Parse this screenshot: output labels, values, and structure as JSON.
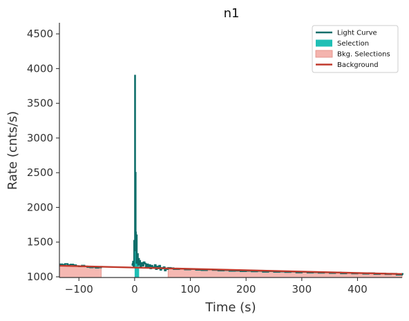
{
  "chart_data": {
    "type": "line",
    "title": "n1",
    "xlabel": "Time (s)",
    "ylabel": "Rate (cnts/s)",
    "xlim": [
      -135,
      480
    ],
    "ylim": [
      990,
      4660
    ],
    "x_ticks": [
      -100,
      0,
      100,
      200,
      300,
      400
    ],
    "x_tick_labels": [
      "−100",
      "0",
      "100",
      "200",
      "300",
      "400"
    ],
    "y_ticks": [
      1000,
      1500,
      2000,
      2500,
      3000,
      3500,
      4000,
      4500
    ],
    "y_tick_labels": [
      "1000",
      "1500",
      "2000",
      "2500",
      "3000",
      "3500",
      "4000",
      "4500"
    ],
    "grid": false,
    "legend_position": "top-right",
    "colors": {
      "light_curve": "#0e6e6a",
      "selection": "#1fbfb5",
      "bkg_selection": "#f4b4ae",
      "bkg_selection_edge": "#e08a82",
      "background": "#c0392b",
      "axis": "#333333"
    },
    "legend": [
      {
        "label": "Light Curve",
        "kind": "line",
        "color_key": "light_curve"
      },
      {
        "label": "Selection",
        "kind": "patch",
        "color_key": "selection"
      },
      {
        "label": "Bkg. Selections",
        "kind": "patch",
        "color_key": "bkg_selection"
      },
      {
        "label": "Background",
        "kind": "line",
        "color_key": "background"
      }
    ],
    "selection_interval": [
      0,
      8
    ],
    "bkg_intervals": [
      [
        -135,
        -60
      ],
      [
        60,
        480
      ]
    ],
    "background_line": {
      "x": [
        -135,
        480
      ],
      "y": [
        1160,
        1040
      ]
    },
    "light_curve": {
      "name": "Light Curve",
      "x": [
        -135,
        -130,
        -125,
        -120,
        -115,
        -110,
        -105,
        -100,
        -95,
        -90,
        -85,
        -80,
        -75,
        -70,
        -65,
        -60,
        -5,
        -4,
        -3,
        -2,
        -1,
        0,
        0.5,
        1,
        1.5,
        2,
        2.5,
        3,
        3.5,
        4,
        5,
        6,
        7,
        8,
        9,
        10,
        12,
        14,
        16,
        18,
        20,
        22,
        24,
        26,
        28,
        30,
        32,
        34,
        36,
        38,
        40,
        42,
        44,
        46,
        48,
        50,
        52,
        54,
        56,
        58,
        60,
        65,
        70,
        80,
        90,
        100,
        110,
        120,
        130,
        140,
        150,
        160,
        170,
        180,
        190,
        200,
        210,
        220,
        230,
        240,
        250,
        260,
        270,
        280,
        290,
        300,
        310,
        320,
        330,
        340,
        350,
        360,
        370,
        380,
        390,
        400,
        410,
        420,
        430,
        440,
        450,
        460,
        470,
        480
      ],
      "y": [
        1180,
        1175,
        1185,
        1170,
        1178,
        1168,
        1155,
        1150,
        1162,
        1150,
        1140,
        1135,
        1142,
        1130,
        1135,
        1145,
        1190,
        1170,
        1220,
        1150,
        1520,
        1380,
        3900,
        2380,
        2500,
        1640,
        1450,
        1200,
        1600,
        1250,
        1330,
        1170,
        1260,
        1180,
        1230,
        1150,
        1200,
        1160,
        1210,
        1190,
        1140,
        1180,
        1150,
        1170,
        1120,
        1160,
        1140,
        1130,
        1170,
        1110,
        1150,
        1120,
        1160,
        1100,
        1130,
        1120,
        1140,
        1090,
        1120,
        1110,
        1130,
        1125,
        1110,
        1115,
        1105,
        1110,
        1100,
        1095,
        1105,
        1098,
        1090,
        1095,
        1085,
        1088,
        1080,
        1086,
        1078,
        1084,
        1072,
        1080,
        1070,
        1076,
        1068,
        1074,
        1062,
        1070,
        1060,
        1066,
        1058,
        1064,
        1055,
        1062,
        1050,
        1058,
        1048,
        1054,
        1045,
        1052,
        1040,
        1048,
        1038,
        1045,
        1030,
        1042
      ]
    }
  }
}
